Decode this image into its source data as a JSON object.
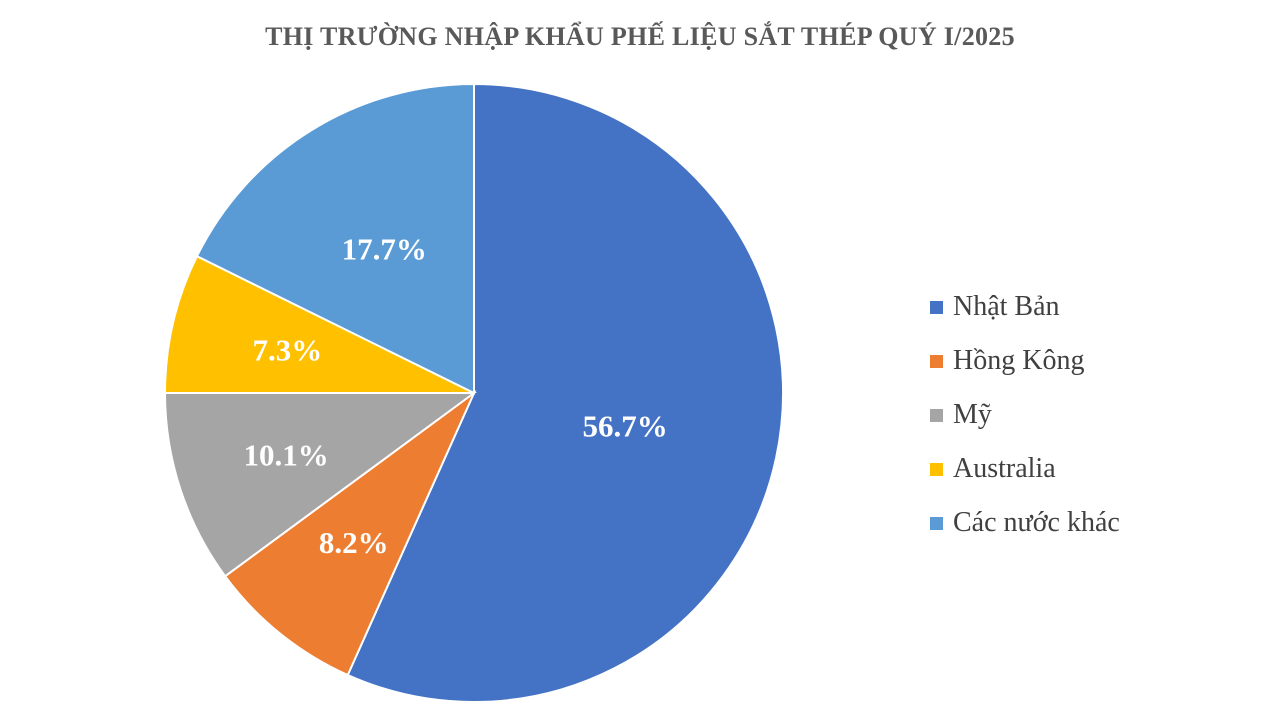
{
  "chart_data": {
    "type": "pie",
    "title": "THỊ TRƯỜNG NHẬP KHẨU PHẾ LIỆU SẮT THÉP QUÝ I/2025",
    "categories": [
      "Nhật Bản",
      "Hồng Kông",
      "Mỹ",
      "Australia",
      "Các nước khác"
    ],
    "values": [
      56.7,
      8.2,
      10.1,
      7.3,
      17.7
    ],
    "data_labels": [
      "56.7%",
      "8.2%",
      "10.1%",
      "7.3%",
      "17.7%"
    ],
    "colors": [
      "#4472C4",
      "#ED7D31",
      "#A5A5A5",
      "#FFC000",
      "#5B9BD5"
    ],
    "legend": {
      "placement": "right",
      "entries": [
        "Nhật Bản",
        "Hồng Kông",
        "Mỹ",
        "Australia",
        "Các nước khác"
      ]
    }
  }
}
